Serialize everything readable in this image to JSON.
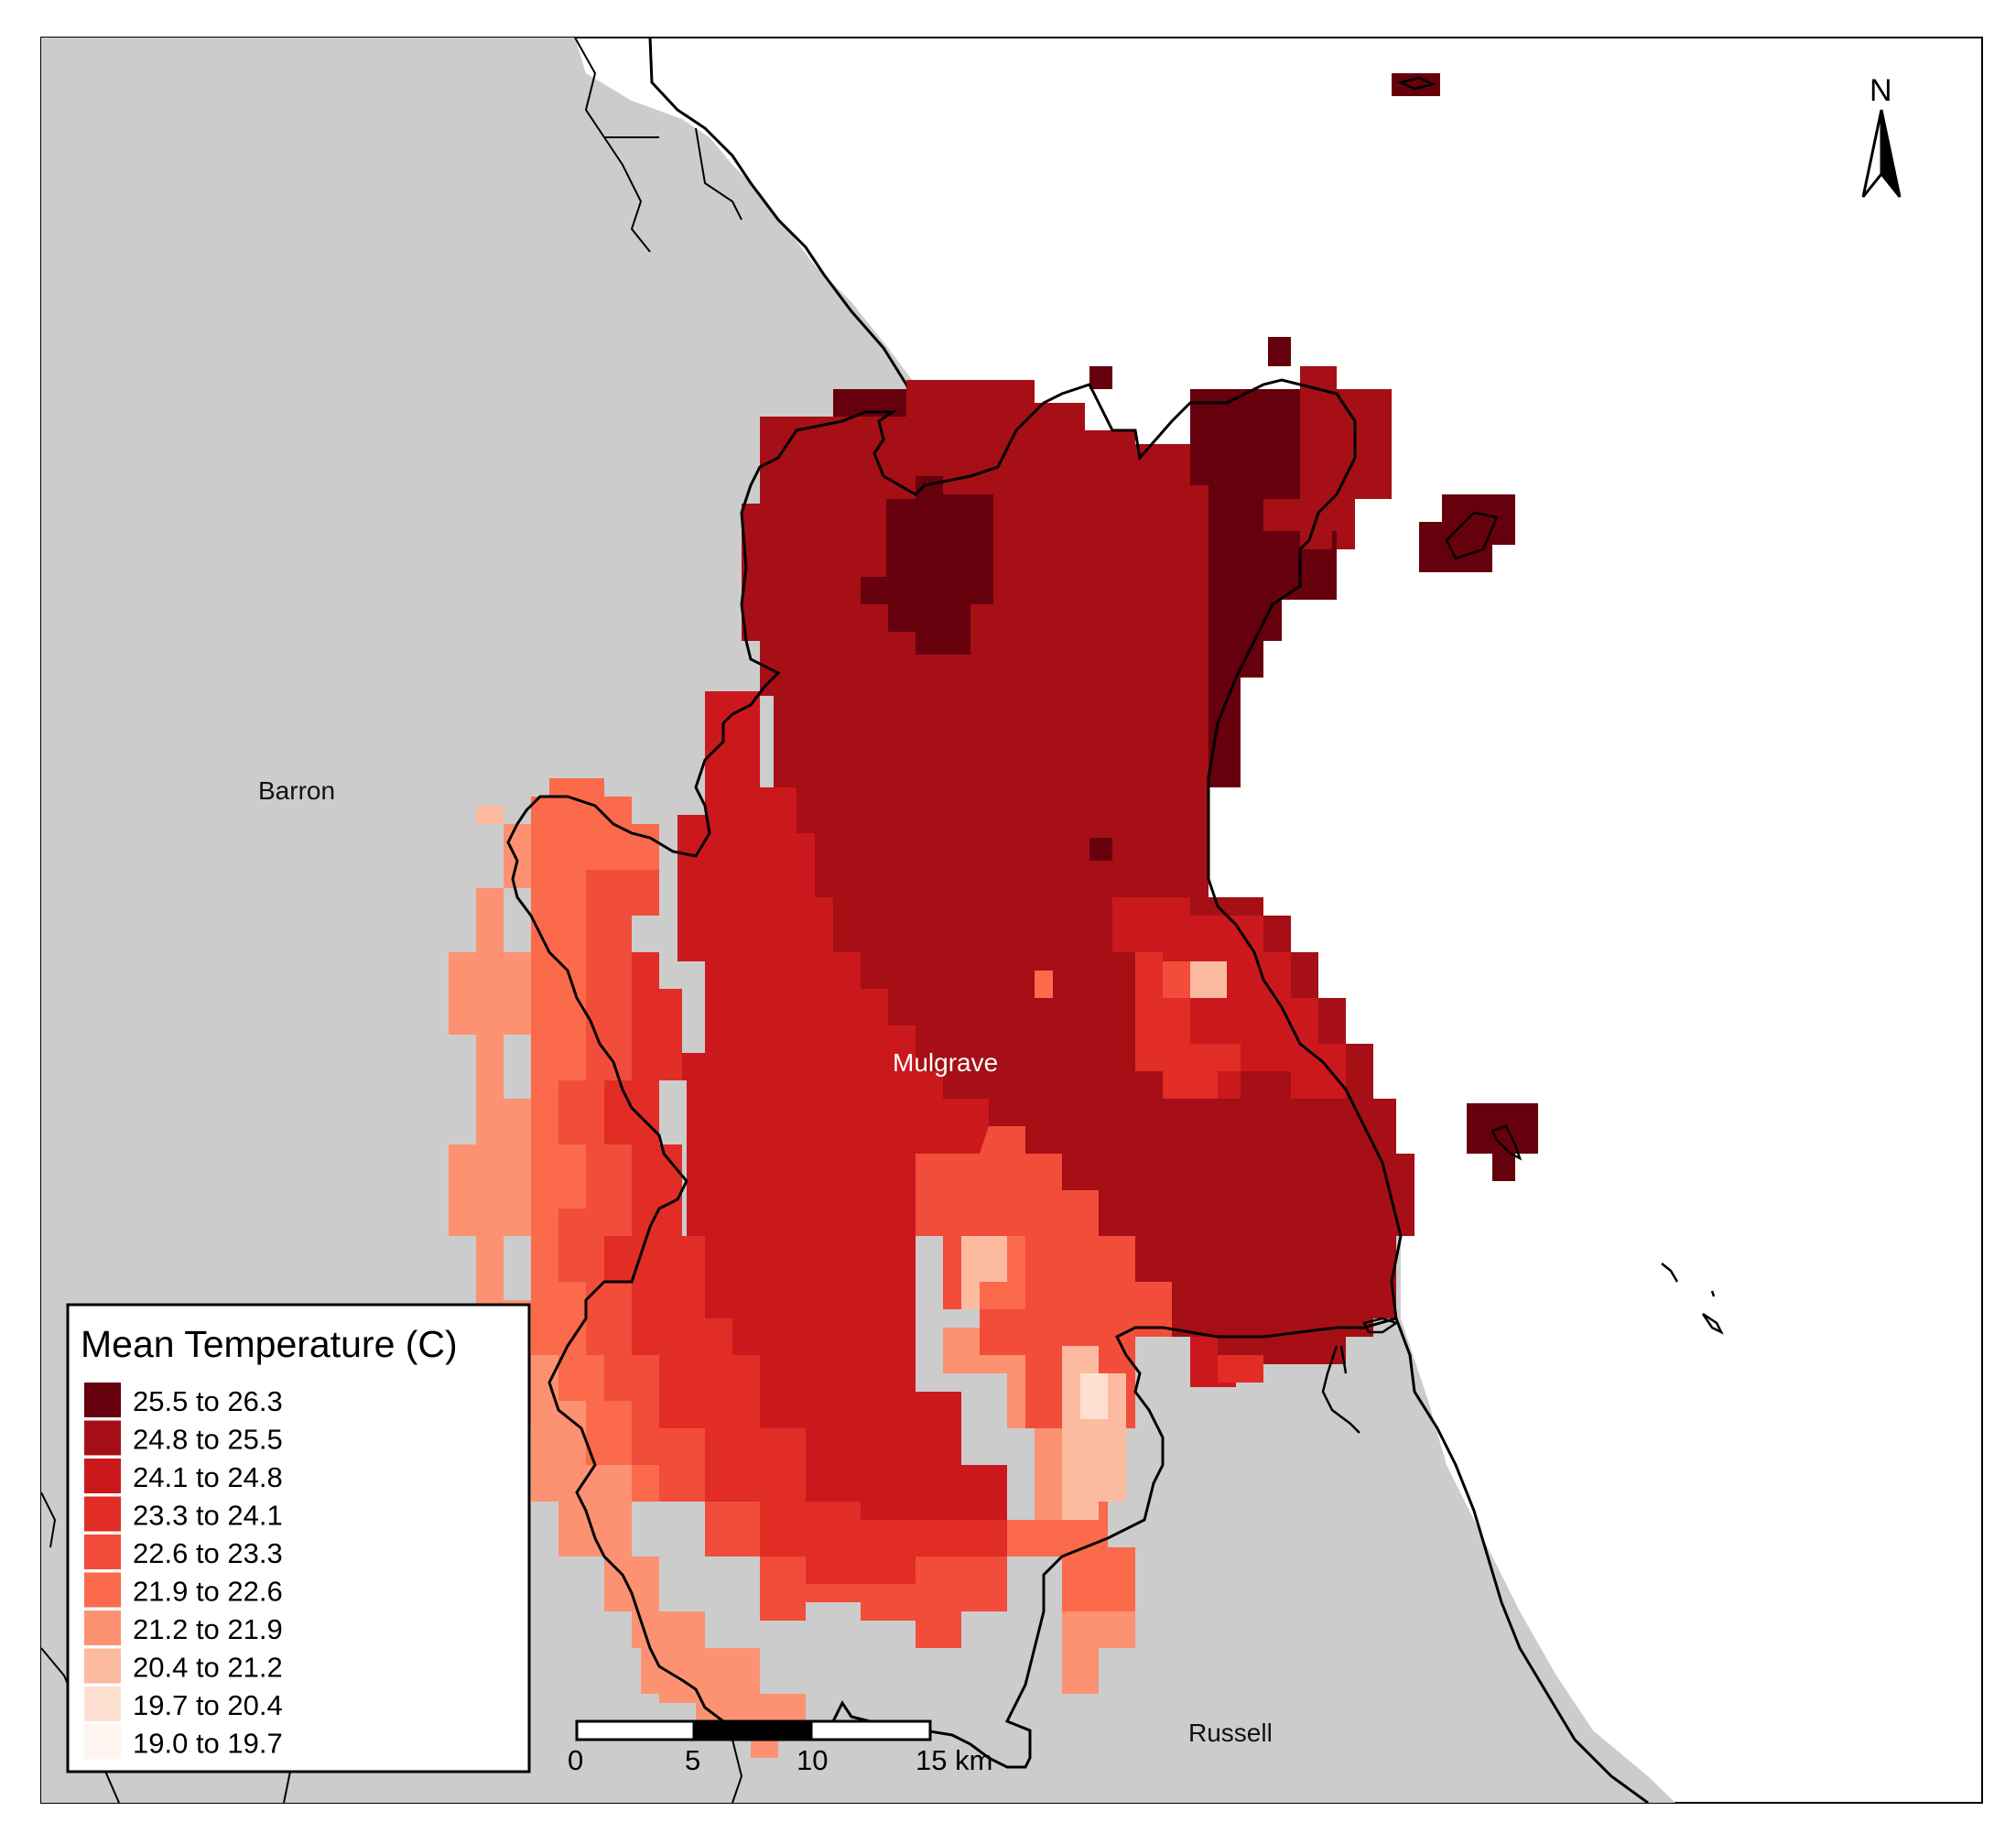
{
  "legend": {
    "title": "Mean Temperature (C)",
    "classes": [
      {
        "label": "25.5 to 26.3",
        "color": "#67000d"
      },
      {
        "label": "24.8 to 25.5",
        "color": "#a50f15"
      },
      {
        "label": "24.1 to 24.8",
        "color": "#cb181d"
      },
      {
        "label": "23.3 to 24.1",
        "color": "#e12d26"
      },
      {
        "label": "22.6 to 23.3",
        "color": "#f14d3a"
      },
      {
        "label": "21.9 to 22.6",
        "color": "#fb6a4a"
      },
      {
        "label": "21.2 to 21.9",
        "color": "#fc9272"
      },
      {
        "label": "20.4 to 21.2",
        "color": "#fcbba1"
      },
      {
        "label": "19.7 to 20.4",
        "color": "#fee0d2"
      },
      {
        "label": "19.0 to 19.7",
        "color": "#fff5f0"
      }
    ]
  },
  "places": {
    "barron": "Barron",
    "mulgrave": "Mulgrave",
    "russell": "Russell"
  },
  "north_arrow": {
    "label": "N"
  },
  "scale_bar": {
    "ticks": [
      "0",
      "5",
      "10",
      "15 km"
    ]
  },
  "colors": {
    "land": "#cccccc",
    "sea": "#ffffff",
    "boundary": "#000000"
  }
}
